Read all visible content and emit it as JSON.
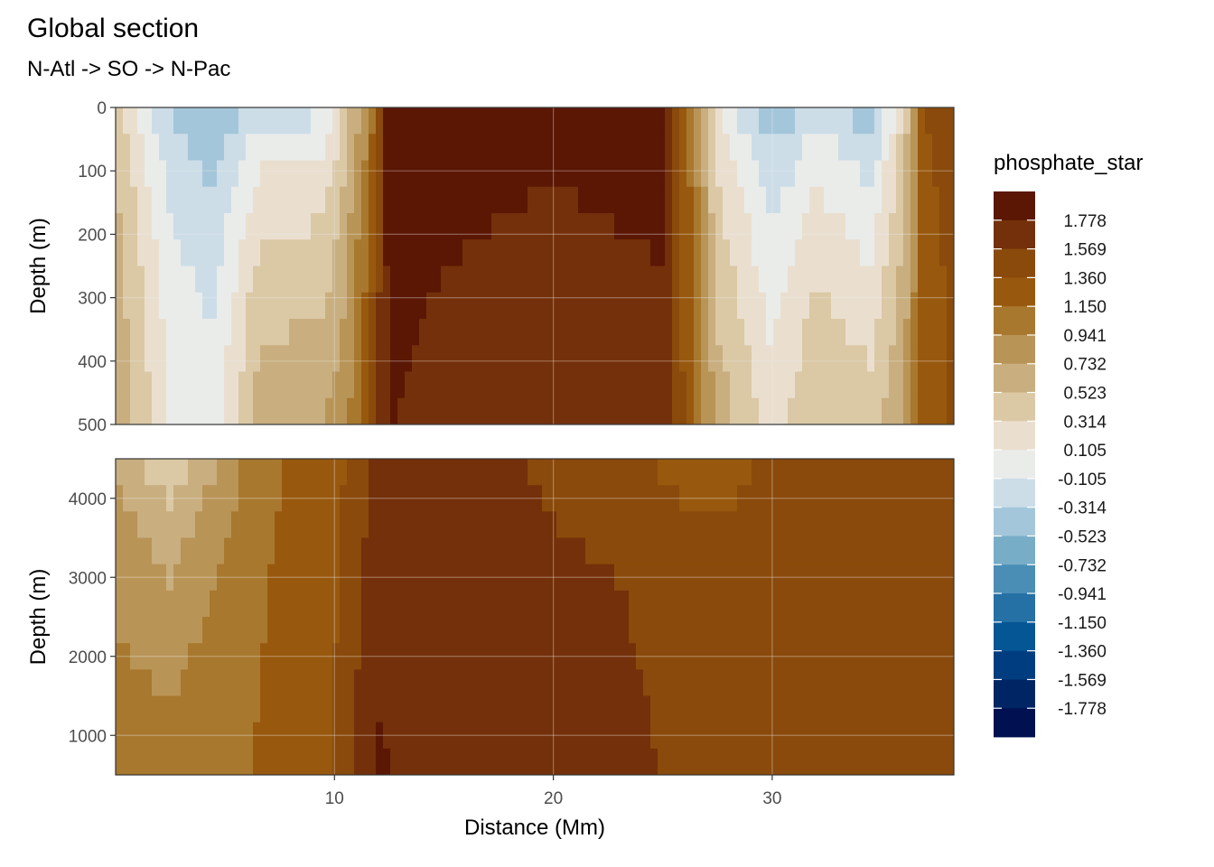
{
  "chart_data": {
    "type": "heatmap",
    "title": "Global section",
    "subtitle": "N-Atl -> SO -> N-Pac",
    "xlabel": "Distance (Mm)",
    "ylabel": "Depth (m)",
    "x_ticks": [
      "10",
      "20",
      "30"
    ],
    "x_tick_values": [
      10,
      20,
      30
    ],
    "xlim": [
      0,
      38.3
    ],
    "grid": true,
    "legend_title": "phosphate_star",
    "legend_position": "right",
    "legend_labels": [
      "1.778",
      "1.569",
      "1.360",
      "1.150",
      "0.941",
      "0.732",
      "0.523",
      "0.314",
      "0.105",
      "-0.105",
      "-0.314",
      "-0.523",
      "-0.732",
      "-0.941",
      "-1.150",
      "-1.360",
      "-1.569",
      "-1.778"
    ],
    "color_bins": [
      "#5b1604",
      "#74300a",
      "#8a4a0b",
      "#98590e",
      "#a8782e",
      "#b99457",
      "#c9ae7f",
      "#dbc8a5",
      "#eadfcf",
      "#eaecea",
      "#ccdde8",
      "#a3c6da",
      "#78adc8",
      "#4a8eb6",
      "#2570a4",
      "#055695",
      "#003d80",
      "#002565",
      "#001050"
    ],
    "panels": [
      {
        "name": "upper",
        "ylim": [
          0,
          500
        ],
        "y_ticks": [
          "0",
          "100",
          "200",
          "300",
          "400",
          "500"
        ],
        "y_tick_values": [
          0,
          100,
          200,
          300,
          400,
          500
        ],
        "x_breaks": [
          0,
          2.5,
          4.5,
          6.5,
          9.5,
          10.5,
          11.5,
          12.5,
          15,
          19,
          21,
          25,
          26.5,
          27.5,
          29.5,
          30,
          32,
          34.5,
          36,
          37,
          38.3
        ],
        "surface": [
          0.3,
          -0.4,
          -0.6,
          -0.3,
          -0.3,
          0.3,
          0.7,
          1.9,
          1.9,
          1.9,
          1.9,
          1.9,
          0.8,
          0.0,
          -0.5,
          -0.6,
          -0.3,
          -0.6,
          0.2,
          1.3,
          1.4
        ],
        "bottom": [
          0.7,
          0.1,
          0.0,
          0.6,
          0.7,
          0.8,
          1.3,
          1.7,
          1.6,
          1.5,
          1.5,
          1.6,
          1.1,
          0.6,
          0.3,
          0.2,
          0.5,
          0.4,
          0.7,
          1.2,
          1.3
        ]
      },
      {
        "name": "lower",
        "ylim": [
          4500,
          500
        ],
        "y_ticks": [
          "1000",
          "2000",
          "3000",
          "4000"
        ],
        "y_tick_values": [
          1000,
          2000,
          3000,
          4000
        ],
        "x_breaks": [
          0,
          2.5,
          6.5,
          10,
          12,
          16,
          20,
          23,
          26,
          30,
          35,
          38.3
        ],
        "top": [
          0.6,
          0.2,
          1.0,
          1.2,
          1.5,
          1.6,
          1.4,
          1.3,
          1.2,
          1.3,
          1.3,
          1.3
        ],
        "bottom": [
          1.0,
          1.0,
          1.1,
          1.3,
          1.7,
          1.6,
          1.6,
          1.6,
          1.4,
          1.3,
          1.4,
          1.4
        ]
      }
    ]
  }
}
